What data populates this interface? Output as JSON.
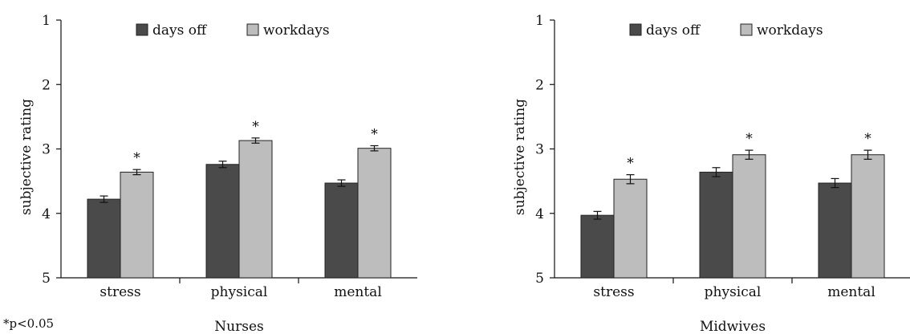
{
  "footnote": "*p<0.05",
  "chart_data": [
    {
      "type": "bar",
      "title": "Nurses",
      "ylabel": "subjective rating",
      "ylim": [
        1,
        5
      ],
      "y_inverted": true,
      "yticks": [
        "1",
        "2",
        "3",
        "4",
        "5"
      ],
      "categories": [
        "stress",
        "physical",
        "mental"
      ],
      "legend_position": "top",
      "series": [
        {
          "name": "days off",
          "color": "#4a4a4a",
          "values": [
            3.78,
            3.24,
            3.53
          ],
          "errors": [
            0.05,
            0.05,
            0.05
          ]
        },
        {
          "name": "workdays",
          "color": "#bdbdbd",
          "values": [
            3.36,
            2.87,
            2.99
          ],
          "errors": [
            0.04,
            0.04,
            0.04
          ]
        }
      ],
      "significance": [
        "*",
        "*",
        "*"
      ]
    },
    {
      "type": "bar",
      "title": "Midwives",
      "ylabel": "subjective rating",
      "ylim": [
        1,
        5
      ],
      "y_inverted": true,
      "yticks": [
        "1",
        "2",
        "3",
        "4",
        "5"
      ],
      "categories": [
        "stress",
        "physical",
        "mental"
      ],
      "legend_position": "top",
      "series": [
        {
          "name": "days off",
          "color": "#4a4a4a",
          "values": [
            4.03,
            3.36,
            3.53
          ],
          "errors": [
            0.06,
            0.07,
            0.07
          ]
        },
        {
          "name": "workdays",
          "color": "#bdbdbd",
          "values": [
            3.47,
            3.09,
            3.09
          ],
          "errors": [
            0.07,
            0.07,
            0.07
          ]
        }
      ],
      "significance": [
        "*",
        "*",
        "*"
      ]
    }
  ]
}
